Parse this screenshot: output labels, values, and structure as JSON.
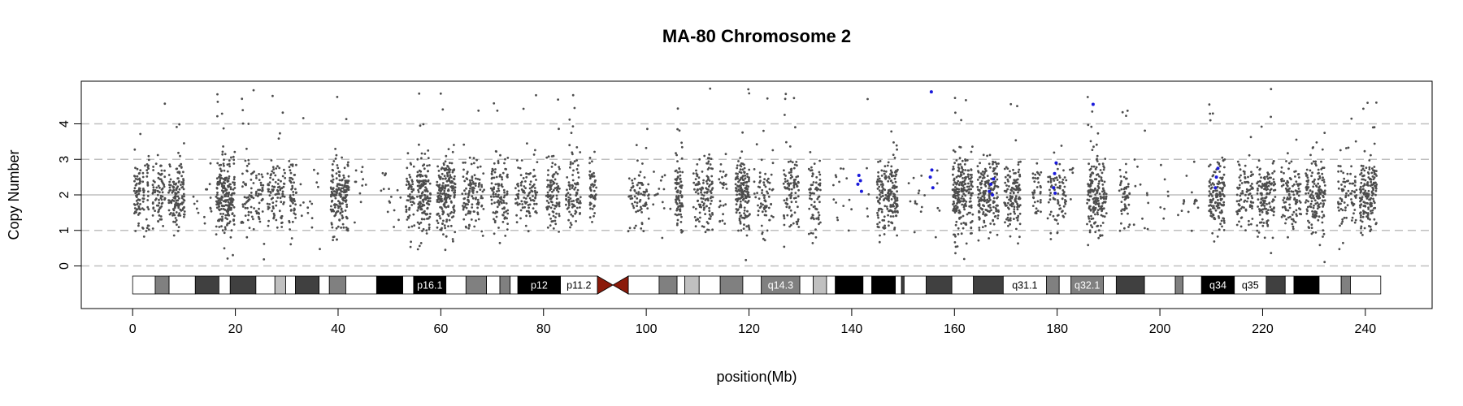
{
  "chart_data": {
    "type": "scatter",
    "title": "MA-80  Chromosome 2",
    "xlabel": "position(Mb)",
    "ylabel": "Copy Number",
    "xlim": [
      -10,
      253
    ],
    "ylim": [
      -1.2,
      5.2
    ],
    "x_ticks": [
      0,
      20,
      40,
      60,
      80,
      100,
      120,
      140,
      160,
      180,
      200,
      220,
      240
    ],
    "y_ticks": [
      0,
      1,
      2,
      3,
      4
    ],
    "hlines": {
      "solid": [
        2
      ],
      "dashed": [
        0,
        1,
        3,
        4
      ]
    },
    "colors": {
      "points": "#4d4d4d",
      "highlight": "#1a1adb",
      "centromere": "#8b1a0a",
      "grid": "#bfbfbf"
    },
    "highlight_points": [
      {
        "x": 141.2,
        "y": 2.3
      },
      {
        "x": 141.4,
        "y": 2.55
      },
      {
        "x": 141.7,
        "y": 2.4
      },
      {
        "x": 141.9,
        "y": 2.1
      },
      {
        "x": 155.3,
        "y": 2.5
      },
      {
        "x": 155.6,
        "y": 2.7
      },
      {
        "x": 155.8,
        "y": 2.2
      },
      {
        "x": 155.5,
        "y": 4.9
      },
      {
        "x": 166.8,
        "y": 2.1
      },
      {
        "x": 167.1,
        "y": 2.3
      },
      {
        "x": 167.4,
        "y": 2.0
      },
      {
        "x": 167.6,
        "y": 2.45
      },
      {
        "x": 179.3,
        "y": 2.2
      },
      {
        "x": 179.5,
        "y": 2.6
      },
      {
        "x": 179.8,
        "y": 2.9
      },
      {
        "x": 179.6,
        "y": 2.05
      },
      {
        "x": 187.0,
        "y": 4.55
      },
      {
        "x": 210.8,
        "y": 2.2
      },
      {
        "x": 211.0,
        "y": 2.5
      },
      {
        "x": 211.3,
        "y": 2.75
      }
    ],
    "ideogram": {
      "start": 0,
      "end": 243,
      "centromere": [
        90.5,
        96.5
      ],
      "bands": [
        {
          "start": 0,
          "end": 4.4,
          "stain": "gneg"
        },
        {
          "start": 4.4,
          "end": 7.1,
          "stain": "gpos50"
        },
        {
          "start": 7.1,
          "end": 12.2,
          "stain": "gneg"
        },
        {
          "start": 12.2,
          "end": 16.8,
          "stain": "gpos75"
        },
        {
          "start": 16.8,
          "end": 19.0,
          "stain": "gneg"
        },
        {
          "start": 19.0,
          "end": 24.0,
          "stain": "gpos75"
        },
        {
          "start": 24.0,
          "end": 27.7,
          "stain": "gneg"
        },
        {
          "start": 27.7,
          "end": 29.8,
          "stain": "gpos25"
        },
        {
          "start": 29.8,
          "end": 31.7,
          "stain": "gneg"
        },
        {
          "start": 31.7,
          "end": 36.3,
          "stain": "gpos75"
        },
        {
          "start": 36.3,
          "end": 38.3,
          "stain": "gneg"
        },
        {
          "start": 38.3,
          "end": 41.5,
          "stain": "gpos50"
        },
        {
          "start": 41.5,
          "end": 47.5,
          "stain": "gneg"
        },
        {
          "start": 47.5,
          "end": 52.6,
          "stain": "gpos100"
        },
        {
          "start": 52.6,
          "end": 54.7,
          "stain": "gneg"
        },
        {
          "start": 54.7,
          "end": 61.0,
          "stain": "gpos100",
          "label": "p16.1"
        },
        {
          "start": 61.0,
          "end": 64.9,
          "stain": "gneg"
        },
        {
          "start": 64.9,
          "end": 68.9,
          "stain": "gpos50"
        },
        {
          "start": 68.9,
          "end": 71.5,
          "stain": "gneg"
        },
        {
          "start": 71.5,
          "end": 73.5,
          "stain": "gpos50"
        },
        {
          "start": 73.5,
          "end": 75.0,
          "stain": "gneg"
        },
        {
          "start": 75.0,
          "end": 83.3,
          "stain": "gpos100",
          "label": "p12"
        },
        {
          "start": 83.3,
          "end": 90.5,
          "stain": "gneg",
          "label": "p11.2"
        },
        {
          "start": 96.5,
          "end": 102.5,
          "stain": "gneg"
        },
        {
          "start": 102.5,
          "end": 106.0,
          "stain": "gpos50"
        },
        {
          "start": 106.0,
          "end": 107.5,
          "stain": "gneg"
        },
        {
          "start": 107.5,
          "end": 110.3,
          "stain": "gpos25"
        },
        {
          "start": 110.3,
          "end": 114.4,
          "stain": "gneg"
        },
        {
          "start": 114.4,
          "end": 118.8,
          "stain": "gpos50"
        },
        {
          "start": 118.8,
          "end": 122.4,
          "stain": "gneg"
        },
        {
          "start": 122.4,
          "end": 129.9,
          "stain": "gpos50",
          "label": "q14.3"
        },
        {
          "start": 129.9,
          "end": 132.5,
          "stain": "gneg"
        },
        {
          "start": 132.5,
          "end": 135.1,
          "stain": "gpos25"
        },
        {
          "start": 135.1,
          "end": 136.8,
          "stain": "gneg"
        },
        {
          "start": 136.8,
          "end": 142.2,
          "stain": "gpos100"
        },
        {
          "start": 142.2,
          "end": 143.9,
          "stain": "gneg"
        },
        {
          "start": 143.9,
          "end": 148.5,
          "stain": "gpos100"
        },
        {
          "start": 148.5,
          "end": 149.7,
          "stain": "gneg"
        },
        {
          "start": 149.7,
          "end": 150.2,
          "stain": "gpos75"
        },
        {
          "start": 150.2,
          "end": 154.5,
          "stain": "gneg"
        },
        {
          "start": 154.5,
          "end": 159.5,
          "stain": "gpos75"
        },
        {
          "start": 159.5,
          "end": 163.7,
          "stain": "gneg"
        },
        {
          "start": 163.7,
          "end": 169.5,
          "stain": "gpos75"
        },
        {
          "start": 169.5,
          "end": 177.9,
          "stain": "gneg",
          "label": "q31.1"
        },
        {
          "start": 177.9,
          "end": 180.4,
          "stain": "gpos50"
        },
        {
          "start": 180.4,
          "end": 182.7,
          "stain": "gneg"
        },
        {
          "start": 182.7,
          "end": 189.0,
          "stain": "gpos50",
          "label": "q32.1"
        },
        {
          "start": 189.0,
          "end": 191.5,
          "stain": "gneg"
        },
        {
          "start": 191.5,
          "end": 197.0,
          "stain": "gpos75"
        },
        {
          "start": 197.0,
          "end": 203.0,
          "stain": "gneg"
        },
        {
          "start": 203.0,
          "end": 204.5,
          "stain": "gpos50"
        },
        {
          "start": 204.5,
          "end": 208.1,
          "stain": "gneg"
        },
        {
          "start": 208.1,
          "end": 214.5,
          "stain": "gpos100",
          "label": "q34"
        },
        {
          "start": 214.5,
          "end": 220.7,
          "stain": "gneg",
          "label": "q35"
        },
        {
          "start": 220.7,
          "end": 224.4,
          "stain": "gpos75"
        },
        {
          "start": 224.4,
          "end": 226.1,
          "stain": "gneg"
        },
        {
          "start": 226.1,
          "end": 231.0,
          "stain": "gpos100"
        },
        {
          "start": 231.0,
          "end": 235.3,
          "stain": "gneg"
        },
        {
          "start": 235.3,
          "end": 237.1,
          "stain": "gpos50"
        },
        {
          "start": 237.1,
          "end": 243.0,
          "stain": "gneg"
        }
      ]
    }
  }
}
